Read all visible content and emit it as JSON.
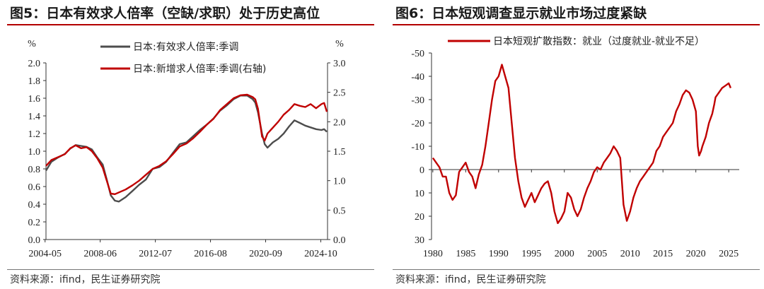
{
  "left": {
    "title": "图5：日本有效求人倍率（空缺/求职）处于历史高位",
    "source": "资料来源：ifind，民生证券研究院",
    "chart_data": {
      "type": "line",
      "title": "",
      "unit_left": "%",
      "unit_right": "%",
      "x_ticks": [
        "2004-05",
        "2008-06",
        "2012-07",
        "2016-08",
        "2020-09",
        "2024-10"
      ],
      "ylim_left": [
        0,
        2.0
      ],
      "ylim_right": [
        0,
        3.0
      ],
      "yticks_left": [
        "0.0",
        "0.2",
        "0.4",
        "0.6",
        "0.8",
        "1.0",
        "1.2",
        "1.4",
        "1.6",
        "1.8",
        "2.0"
      ],
      "yticks_right": [
        "0.0",
        "0.5",
        "1.0",
        "1.5",
        "2.0",
        "2.5",
        "3.0"
      ],
      "legend_placement": "top-center",
      "grid": false,
      "series": [
        {
          "name": "日本:有效求人倍率:季调",
          "axis": "left",
          "color": "#4d4d4d",
          "points": [
            [
              2004.4,
              0.78
            ],
            [
              2004.8,
              0.88
            ],
            [
              2005.3,
              0.93
            ],
            [
              2005.8,
              0.97
            ],
            [
              2006.2,
              1.03
            ],
            [
              2006.6,
              1.07
            ],
            [
              2007.0,
              1.06
            ],
            [
              2007.4,
              1.05
            ],
            [
              2007.8,
              1.02
            ],
            [
              2008.2,
              0.93
            ],
            [
              2008.6,
              0.85
            ],
            [
              2008.9,
              0.68
            ],
            [
              2009.2,
              0.5
            ],
            [
              2009.5,
              0.44
            ],
            [
              2009.8,
              0.43
            ],
            [
              2010.3,
              0.48
            ],
            [
              2010.8,
              0.55
            ],
            [
              2011.3,
              0.62
            ],
            [
              2011.8,
              0.68
            ],
            [
              2012.3,
              0.8
            ],
            [
              2012.8,
              0.82
            ],
            [
              2013.3,
              0.88
            ],
            [
              2013.8,
              0.98
            ],
            [
              2014.3,
              1.08
            ],
            [
              2014.8,
              1.1
            ],
            [
              2015.3,
              1.17
            ],
            [
              2015.8,
              1.24
            ],
            [
              2016.3,
              1.3
            ],
            [
              2016.8,
              1.37
            ],
            [
              2017.3,
              1.46
            ],
            [
              2017.8,
              1.52
            ],
            [
              2018.3,
              1.59
            ],
            [
              2018.8,
              1.63
            ],
            [
              2019.3,
              1.63
            ],
            [
              2019.7,
              1.59
            ],
            [
              2019.9,
              1.55
            ],
            [
              2020.1,
              1.44
            ],
            [
              2020.4,
              1.2
            ],
            [
              2020.6,
              1.08
            ],
            [
              2020.8,
              1.04
            ],
            [
              2021.2,
              1.1
            ],
            [
              2021.6,
              1.14
            ],
            [
              2022.0,
              1.2
            ],
            [
              2022.4,
              1.28
            ],
            [
              2022.8,
              1.35
            ],
            [
              2023.2,
              1.32
            ],
            [
              2023.6,
              1.29
            ],
            [
              2024.0,
              1.27
            ],
            [
              2024.4,
              1.25
            ],
            [
              2024.8,
              1.24
            ],
            [
              2025.0,
              1.25
            ],
            [
              2025.2,
              1.22
            ]
          ]
        },
        {
          "name": "日本:新增求人倍率:季调(右轴)",
          "axis": "right",
          "color": "#c00000",
          "points": [
            [
              2004.4,
              1.25
            ],
            [
              2004.8,
              1.35
            ],
            [
              2005.3,
              1.4
            ],
            [
              2005.8,
              1.45
            ],
            [
              2006.2,
              1.55
            ],
            [
              2006.6,
              1.6
            ],
            [
              2007.0,
              1.55
            ],
            [
              2007.4,
              1.57
            ],
            [
              2007.8,
              1.5
            ],
            [
              2008.2,
              1.38
            ],
            [
              2008.6,
              1.22
            ],
            [
              2008.9,
              1.0
            ],
            [
              2009.2,
              0.78
            ],
            [
              2009.5,
              0.77
            ],
            [
              2009.8,
              0.8
            ],
            [
              2010.3,
              0.85
            ],
            [
              2010.8,
              0.92
            ],
            [
              2011.3,
              1.0
            ],
            [
              2011.8,
              1.1
            ],
            [
              2012.3,
              1.2
            ],
            [
              2012.8,
              1.25
            ],
            [
              2013.3,
              1.33
            ],
            [
              2013.8,
              1.45
            ],
            [
              2014.3,
              1.58
            ],
            [
              2014.8,
              1.63
            ],
            [
              2015.3,
              1.72
            ],
            [
              2015.8,
              1.83
            ],
            [
              2016.3,
              1.95
            ],
            [
              2016.8,
              2.05
            ],
            [
              2017.3,
              2.2
            ],
            [
              2017.8,
              2.3
            ],
            [
              2018.3,
              2.4
            ],
            [
              2018.8,
              2.45
            ],
            [
              2019.3,
              2.46
            ],
            [
              2019.7,
              2.42
            ],
            [
              2019.9,
              2.38
            ],
            [
              2020.1,
              2.22
            ],
            [
              2020.4,
              1.75
            ],
            [
              2020.6,
              1.68
            ],
            [
              2020.8,
              1.8
            ],
            [
              2021.2,
              1.9
            ],
            [
              2021.6,
              2.0
            ],
            [
              2022.0,
              2.12
            ],
            [
              2022.4,
              2.2
            ],
            [
              2022.8,
              2.3
            ],
            [
              2023.2,
              2.27
            ],
            [
              2023.6,
              2.25
            ],
            [
              2024.0,
              2.3
            ],
            [
              2024.4,
              2.23
            ],
            [
              2024.8,
              2.3
            ],
            [
              2025.0,
              2.32
            ],
            [
              2025.2,
              2.17
            ]
          ]
        }
      ]
    }
  },
  "right": {
    "title": "图6：日本短观调查显示就业市场过度紧缺",
    "source": "资料来源：ifind，民生证券研究院",
    "chart_data": {
      "type": "line",
      "title": "",
      "x_ticks": [
        "1980",
        "1985",
        "1990",
        "1995",
        "2000",
        "2005",
        "2010",
        "2015",
        "2020",
        "2025"
      ],
      "ylim": [
        30,
        -50
      ],
      "y_inverted": true,
      "yticks": [
        "-50",
        "-40",
        "-30",
        "-20",
        "-10",
        "0",
        "10",
        "20",
        "30"
      ],
      "legend_placement": "top-center",
      "grid": false,
      "series": [
        {
          "name": "日本短观扩散指数：就业（过度就业-就业不足）",
          "color": "#c00000",
          "points": [
            [
              1980.0,
              -5
            ],
            [
              1980.5,
              -3
            ],
            [
              1981.0,
              -1
            ],
            [
              1981.5,
              3
            ],
            [
              1982.0,
              3
            ],
            [
              1982.5,
              10
            ],
            [
              1983.0,
              13
            ],
            [
              1983.5,
              11
            ],
            [
              1984.0,
              1
            ],
            [
              1984.5,
              -1
            ],
            [
              1985.0,
              -3
            ],
            [
              1985.5,
              1
            ],
            [
              1986.0,
              3
            ],
            [
              1986.5,
              8
            ],
            [
              1987.0,
              2
            ],
            [
              1987.5,
              -2
            ],
            [
              1988.0,
              -10
            ],
            [
              1988.5,
              -20
            ],
            [
              1989.0,
              -30
            ],
            [
              1989.5,
              -38
            ],
            [
              1990.0,
              -40
            ],
            [
              1990.5,
              -45
            ],
            [
              1991.0,
              -40
            ],
            [
              1991.5,
              -35
            ],
            [
              1992.0,
              -20
            ],
            [
              1992.5,
              -5
            ],
            [
              1993.0,
              5
            ],
            [
              1993.5,
              12
            ],
            [
              1994.0,
              16
            ],
            [
              1994.5,
              13
            ],
            [
              1995.0,
              10
            ],
            [
              1995.5,
              14
            ],
            [
              1996.0,
              11
            ],
            [
              1996.5,
              8
            ],
            [
              1997.0,
              6
            ],
            [
              1997.5,
              5
            ],
            [
              1998.0,
              10
            ],
            [
              1998.5,
              18
            ],
            [
              1999.0,
              23
            ],
            [
              1999.5,
              21
            ],
            [
              2000.0,
              18
            ],
            [
              2000.5,
              10
            ],
            [
              2001.0,
              12
            ],
            [
              2001.5,
              17
            ],
            [
              2002.0,
              20
            ],
            [
              2002.5,
              17
            ],
            [
              2003.0,
              12
            ],
            [
              2003.5,
              8
            ],
            [
              2004.0,
              5
            ],
            [
              2004.5,
              1
            ],
            [
              2005.0,
              -1
            ],
            [
              2005.5,
              0
            ],
            [
              2006.0,
              -3
            ],
            [
              2006.5,
              -5
            ],
            [
              2007.0,
              -7
            ],
            [
              2007.5,
              -10
            ],
            [
              2008.0,
              -8
            ],
            [
              2008.5,
              -5
            ],
            [
              2009.0,
              15
            ],
            [
              2009.5,
              22
            ],
            [
              2010.0,
              18
            ],
            [
              2010.5,
              12
            ],
            [
              2011.0,
              8
            ],
            [
              2011.5,
              5
            ],
            [
              2012.0,
              3
            ],
            [
              2012.5,
              1
            ],
            [
              2013.0,
              -1
            ],
            [
              2013.5,
              -3
            ],
            [
              2014.0,
              -8
            ],
            [
              2014.5,
              -10
            ],
            [
              2015.0,
              -14
            ],
            [
              2015.5,
              -16
            ],
            [
              2016.0,
              -18
            ],
            [
              2016.5,
              -20
            ],
            [
              2017.0,
              -25
            ],
            [
              2017.5,
              -28
            ],
            [
              2018.0,
              -32
            ],
            [
              2018.5,
              -34
            ],
            [
              2019.0,
              -33
            ],
            [
              2019.5,
              -30
            ],
            [
              2020.0,
              -25
            ],
            [
              2020.3,
              -10
            ],
            [
              2020.5,
              -6
            ],
            [
              2020.8,
              -8
            ],
            [
              2021.0,
              -10
            ],
            [
              2021.5,
              -14
            ],
            [
              2022.0,
              -20
            ],
            [
              2022.5,
              -24
            ],
            [
              2022.8,
              -28
            ],
            [
              2023.0,
              -31
            ],
            [
              2023.5,
              -33
            ],
            [
              2024.0,
              -35
            ],
            [
              2024.5,
              -36
            ],
            [
              2025.0,
              -37
            ],
            [
              2025.3,
              -35
            ]
          ]
        }
      ]
    }
  }
}
